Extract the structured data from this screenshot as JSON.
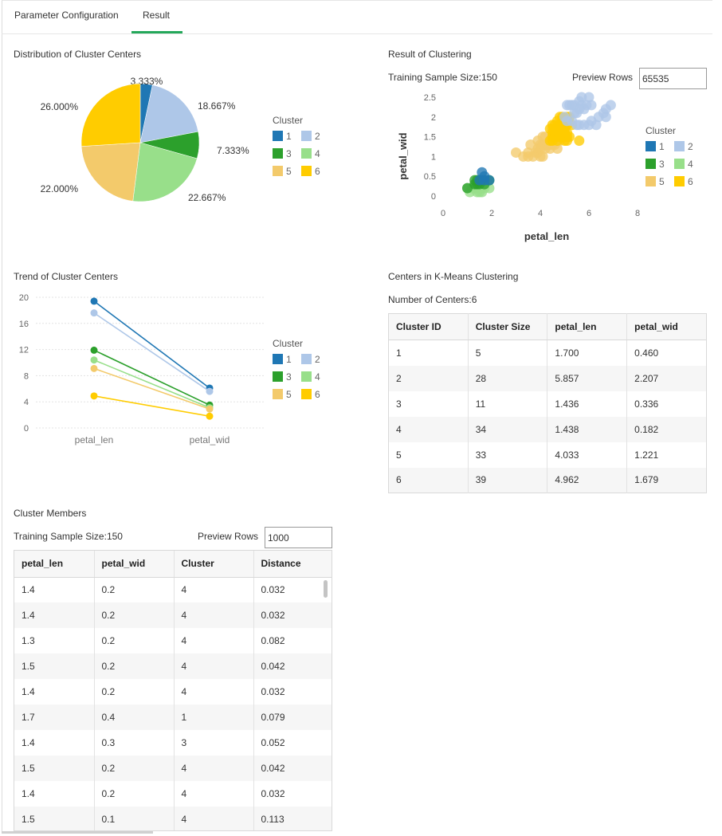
{
  "tabs": [
    {
      "label": "Parameter Configuration"
    },
    {
      "label": "Result"
    }
  ],
  "pie_section": {
    "title": "Distribution of Cluster Centers",
    "legend_title": "Cluster",
    "legend": [
      "1",
      "2",
      "3",
      "4",
      "5",
      "6"
    ],
    "labels": [
      "3.333%",
      "18.667%",
      "7.333%",
      "22.667%",
      "22.000%",
      "26.000%"
    ]
  },
  "scatter_section": {
    "title": "Result of Clustering",
    "sample_label": "Training Sample Size:150",
    "preview_label": "Preview Rows",
    "preview_value": "65535",
    "xlabel": "petal_len",
    "ylabel": "petal_wid",
    "x_ticks": [
      "0",
      "2",
      "4",
      "6",
      "8"
    ],
    "y_ticks": [
      "0",
      "0.5",
      "1",
      "1.5",
      "2",
      "2.5"
    ],
    "legend_title": "Cluster",
    "legend": [
      "1",
      "2",
      "3",
      "4",
      "5",
      "6"
    ]
  },
  "trend_section": {
    "title": "Trend of Cluster Centers",
    "y_ticks": [
      "0",
      "4",
      "8",
      "12",
      "16",
      "20"
    ],
    "x_ticks": [
      "petal_len",
      "petal_wid"
    ],
    "legend_title": "Cluster",
    "legend": [
      "1",
      "2",
      "3",
      "4",
      "5",
      "6"
    ]
  },
  "centers_section": {
    "title": "Centers in K-Means Clustering",
    "count_label": "Number of Centers:6",
    "headers": [
      "Cluster ID",
      "Cluster Size",
      "petal_len",
      "petal_wid"
    ],
    "rows": [
      [
        "1",
        "5",
        "1.700",
        "0.460"
      ],
      [
        "2",
        "28",
        "5.857",
        "2.207"
      ],
      [
        "3",
        "11",
        "1.436",
        "0.336"
      ],
      [
        "4",
        "34",
        "1.438",
        "0.182"
      ],
      [
        "5",
        "33",
        "4.033",
        "1.221"
      ],
      [
        "6",
        "39",
        "4.962",
        "1.679"
      ]
    ]
  },
  "members_section": {
    "title": "Cluster Members",
    "sample_label": "Training Sample Size:150",
    "preview_label": "Preview Rows",
    "preview_value": "1000",
    "headers": [
      "petal_len",
      "petal_wid",
      "Cluster",
      "Distance"
    ],
    "rows": [
      [
        "1.4",
        "0.2",
        "4",
        "0.032"
      ],
      [
        "1.4",
        "0.2",
        "4",
        "0.032"
      ],
      [
        "1.3",
        "0.2",
        "4",
        "0.082"
      ],
      [
        "1.5",
        "0.2",
        "4",
        "0.042"
      ],
      [
        "1.4",
        "0.2",
        "4",
        "0.032"
      ],
      [
        "1.7",
        "0.4",
        "1",
        "0.079"
      ],
      [
        "1.4",
        "0.3",
        "3",
        "0.052"
      ],
      [
        "1.5",
        "0.2",
        "4",
        "0.042"
      ],
      [
        "1.4",
        "0.2",
        "4",
        "0.032"
      ],
      [
        "1.5",
        "0.1",
        "4",
        "0.113"
      ]
    ]
  },
  "colors": {
    "c1": "#1f77b4",
    "c2": "#aec7e8",
    "c3": "#2ca02c",
    "c4": "#98df8a",
    "c5": "#f3ca6b",
    "c6": "#ffcc00",
    "accent": "#24a85a"
  },
  "chart_data": [
    {
      "type": "pie",
      "title": "Distribution of Cluster Centers",
      "legend_title": "Cluster",
      "categories": [
        "1",
        "2",
        "3",
        "4",
        "5",
        "6"
      ],
      "values": [
        3.333,
        18.667,
        7.333,
        22.667,
        22.0,
        26.0
      ]
    },
    {
      "type": "scatter",
      "title": "Result of Clustering",
      "xlabel": "petal_len",
      "ylabel": "petal_wid",
      "xlim": [
        0,
        8
      ],
      "ylim": [
        0,
        2.5
      ],
      "legend_title": "Cluster",
      "series": [
        {
          "name": "1",
          "points": [
            [
              1.7,
              0.4
            ],
            [
              1.5,
              0.4
            ],
            [
              1.6,
              0.6
            ],
            [
              1.9,
              0.4
            ],
            [
              1.7,
              0.5
            ]
          ]
        },
        {
          "name": "2",
          "points": [
            [
              5.1,
              2.3
            ],
            [
              5.3,
              2.3
            ],
            [
              5.5,
              2.1
            ],
            [
              5.6,
              2.4
            ],
            [
              5.8,
              2.2
            ],
            [
              6.0,
              2.5
            ],
            [
              6.1,
              2.3
            ],
            [
              5.7,
              2.5
            ],
            [
              5.4,
              2.3
            ],
            [
              5.9,
              2.3
            ],
            [
              6.3,
              1.8
            ],
            [
              6.6,
              2.1
            ],
            [
              6.7,
              2.2
            ],
            [
              6.9,
              2.3
            ],
            [
              6.1,
              1.9
            ],
            [
              5.8,
              1.8
            ],
            [
              5.6,
              1.8
            ],
            [
              5.7,
              2.3
            ],
            [
              5.1,
              1.9
            ],
            [
              5.5,
              1.8
            ],
            [
              5.2,
              2.3
            ],
            [
              5.0,
              2.0
            ],
            [
              6.7,
              2.0
            ],
            [
              6.4,
              2.0
            ],
            [
              5.6,
              2.2
            ],
            [
              5.4,
              2.1
            ],
            [
              5.3,
              1.9
            ],
            [
              6.0,
              1.8
            ]
          ]
        },
        {
          "name": "3",
          "points": [
            [
              1.4,
              0.3
            ],
            [
              1.3,
              0.3
            ],
            [
              1.5,
              0.3
            ],
            [
              1.7,
              0.3
            ],
            [
              1.4,
              0.4
            ],
            [
              1.6,
              0.4
            ],
            [
              1.5,
              0.4
            ],
            [
              1.0,
              0.2
            ],
            [
              1.3,
              0.4
            ],
            [
              1.7,
              0.4
            ],
            [
              1.9,
              0.4
            ]
          ]
        },
        {
          "name": "4",
          "points": [
            [
              1.4,
              0.2
            ],
            [
              1.3,
              0.2
            ],
            [
              1.5,
              0.2
            ],
            [
              1.4,
              0.1
            ],
            [
              1.1,
              0.1
            ],
            [
              1.2,
              0.2
            ],
            [
              1.6,
              0.2
            ],
            [
              1.5,
              0.1
            ],
            [
              1.9,
              0.2
            ],
            [
              1.6,
              0.1
            ],
            [
              1.0,
              0.2
            ],
            [
              1.7,
              0.2
            ]
          ]
        },
        {
          "name": "5",
          "points": [
            [
              3.0,
              1.1
            ],
            [
              3.3,
              1.0
            ],
            [
              3.5,
              1.0
            ],
            [
              3.6,
              1.3
            ],
            [
              3.7,
              1.0
            ],
            [
              3.8,
              1.1
            ],
            [
              3.9,
              1.1
            ],
            [
              3.9,
              1.2
            ],
            [
              3.9,
              1.4
            ],
            [
              4.0,
              1.0
            ],
            [
              4.0,
              1.2
            ],
            [
              4.0,
              1.3
            ],
            [
              4.1,
              1.0
            ],
            [
              4.1,
              1.3
            ],
            [
              4.2,
              1.2
            ],
            [
              4.2,
              1.3
            ],
            [
              4.3,
              1.3
            ],
            [
              4.4,
              1.2
            ],
            [
              4.4,
              1.3
            ],
            [
              4.4,
              1.4
            ],
            [
              4.5,
              1.3
            ],
            [
              4.5,
              1.5
            ],
            [
              4.5,
              1.7
            ],
            [
              4.6,
              1.3
            ],
            [
              4.6,
              1.4
            ],
            [
              4.7,
              1.2
            ],
            [
              4.7,
              1.4
            ],
            [
              4.8,
              1.4
            ],
            [
              4.9,
              1.5
            ],
            [
              5.0,
              1.5
            ],
            [
              4.2,
              1.5
            ],
            [
              4.1,
              1.5
            ],
            [
              3.5,
              1.1
            ]
          ]
        },
        {
          "name": "6",
          "points": [
            [
              4.5,
              1.5
            ],
            [
              4.6,
              1.5
            ],
            [
              4.7,
              1.5
            ],
            [
              4.7,
              1.6
            ],
            [
              4.8,
              1.8
            ],
            [
              4.9,
              1.8
            ],
            [
              5.0,
              1.7
            ],
            [
              5.1,
              1.6
            ],
            [
              5.1,
              1.5
            ],
            [
              5.0,
              1.9
            ],
            [
              4.9,
              2.0
            ],
            [
              5.1,
              2.0
            ],
            [
              4.8,
              1.8
            ],
            [
              5.2,
              2.0
            ],
            [
              4.4,
              1.4
            ],
            [
              4.7,
              1.4
            ],
            [
              4.9,
              1.5
            ],
            [
              4.5,
              1.6
            ],
            [
              4.6,
              1.6
            ],
            [
              5.0,
              1.5
            ],
            [
              4.8,
              1.6
            ],
            [
              5.3,
              1.8
            ],
            [
              5.6,
              1.4
            ],
            [
              5.1,
              1.4
            ],
            [
              4.4,
              1.7
            ],
            [
              5.0,
              1.6
            ],
            [
              4.9,
              1.7
            ],
            [
              4.5,
              1.8
            ],
            [
              4.8,
              1.5
            ],
            [
              5.2,
              1.5
            ],
            [
              4.6,
              1.7
            ],
            [
              4.7,
              1.9
            ],
            [
              4.9,
              1.9
            ],
            [
              5.1,
              1.8
            ],
            [
              4.8,
              2.0
            ],
            [
              4.5,
              1.4
            ],
            [
              4.6,
              1.8
            ],
            [
              5.0,
              1.4
            ],
            [
              4.9,
              1.6
            ]
          ]
        }
      ]
    },
    {
      "type": "line",
      "title": "Trend of Cluster Centers",
      "categories": [
        "petal_len",
        "petal_wid"
      ],
      "ylim": [
        0,
        20
      ],
      "legend_title": "Cluster",
      "series": [
        {
          "name": "1",
          "values": [
            19.4,
            6.1
          ]
        },
        {
          "name": "2",
          "values": [
            17.6,
            5.6
          ]
        },
        {
          "name": "3",
          "values": [
            11.9,
            3.5
          ]
        },
        {
          "name": "4",
          "values": [
            10.4,
            3.1
          ]
        },
        {
          "name": "5",
          "values": [
            9.1,
            2.9
          ]
        },
        {
          "name": "6",
          "values": [
            4.9,
            1.8
          ]
        }
      ]
    }
  ]
}
